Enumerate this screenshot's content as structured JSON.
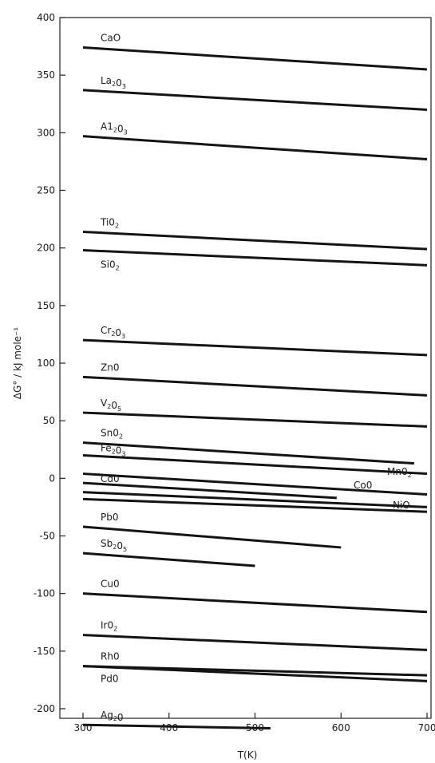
{
  "chart_data": {
    "type": "line",
    "title": "",
    "xlabel": "T(K)",
    "ylabel": "ΔG° / kJ mole⁻¹",
    "xlim": [
      275,
      700
    ],
    "ylim": [
      -225,
      400
    ],
    "xticks": [
      300,
      400,
      500,
      600,
      700
    ],
    "yticks": [
      400,
      350,
      300,
      250,
      200,
      150,
      100,
      50,
      0,
      -50,
      -100,
      -150,
      -200
    ],
    "grid": false,
    "line_color": "#141414",
    "series": [
      {
        "name": "CaO",
        "label_parts": [
          [
            "CaO",
            false
          ]
        ],
        "x": [
          300,
          700
        ],
        "y": [
          374,
          355
        ]
      },
      {
        "name": "La2O3",
        "label_parts": [
          [
            "La",
            false
          ],
          [
            "2",
            true
          ],
          [
            "0",
            false
          ],
          [
            "3",
            true
          ]
        ],
        "x": [
          300,
          700
        ],
        "y": [
          337,
          320
        ]
      },
      {
        "name": "Al2O3",
        "label_parts": [
          [
            "A1",
            false
          ],
          [
            "2",
            true
          ],
          [
            "0",
            false
          ],
          [
            "3",
            true
          ]
        ],
        "x": [
          300,
          700
        ],
        "y": [
          297,
          277
        ]
      },
      {
        "name": "TiO2",
        "label_parts": [
          [
            "Ti0",
            false
          ],
          [
            "2",
            true
          ]
        ],
        "x": [
          300,
          700
        ],
        "y": [
          214,
          199
        ]
      },
      {
        "name": "SiO2",
        "label_parts": [
          [
            "Si0",
            false
          ],
          [
            "2",
            true
          ]
        ],
        "x": [
          300,
          700
        ],
        "y": [
          198,
          185
        ]
      },
      {
        "name": "Cr2O3",
        "label_parts": [
          [
            "Cr",
            false
          ],
          [
            "2",
            true
          ],
          [
            "0",
            false
          ],
          [
            "3",
            true
          ]
        ],
        "x": [
          300,
          700
        ],
        "y": [
          120,
          107
        ]
      },
      {
        "name": "ZnO",
        "label_parts": [
          [
            "Zn0",
            false
          ]
        ],
        "x": [
          300,
          700
        ],
        "y": [
          88,
          72
        ]
      },
      {
        "name": "V2O5",
        "label_parts": [
          [
            "V",
            false
          ],
          [
            "2",
            true
          ],
          [
            "0",
            false
          ],
          [
            "5",
            true
          ]
        ],
        "x": [
          300,
          700
        ],
        "y": [
          57,
          45
        ]
      },
      {
        "name": "SnO2",
        "label_parts": [
          [
            "Sn0",
            false
          ],
          [
            "2",
            true
          ]
        ],
        "x": [
          300,
          685
        ],
        "y": [
          31,
          13
        ]
      },
      {
        "name": "Fe2O3",
        "label_parts": [
          [
            "Fe",
            false
          ],
          [
            "2",
            true
          ],
          [
            "0",
            false
          ],
          [
            "3",
            true
          ]
        ],
        "x": [
          300,
          700
        ],
        "y": [
          20,
          4
        ]
      },
      {
        "name": "MnO2",
        "label_parts": [
          [
            "Mn0",
            false
          ],
          [
            "2",
            true
          ]
        ],
        "x": [
          300,
          700
        ],
        "y": [
          4,
          -14
        ]
      },
      {
        "name": "CdO",
        "label_parts": [
          [
            "Cd0",
            false
          ]
        ],
        "x": [
          300,
          595
        ],
        "y": [
          -4,
          -17
        ]
      },
      {
        "name": "CoO",
        "label_parts": [
          [
            "Co0",
            false
          ]
        ],
        "x": [
          300,
          700
        ],
        "y": [
          -12,
          -25
        ]
      },
      {
        "name": "NiO",
        "label_parts": [
          [
            "NiO",
            false
          ]
        ],
        "x": [
          300,
          700
        ],
        "y": [
          -18,
          -29
        ]
      },
      {
        "name": "PbO",
        "label_parts": [
          [
            "Pb0",
            false
          ]
        ],
        "x": [
          300,
          600
        ],
        "y": [
          -42,
          -60
        ]
      },
      {
        "name": "Sb2O5",
        "label_parts": [
          [
            "Sb",
            false
          ],
          [
            "2",
            true
          ],
          [
            "0",
            false
          ],
          [
            "5",
            true
          ]
        ],
        "x": [
          300,
          500
        ],
        "y": [
          -65,
          -76
        ]
      },
      {
        "name": "CuO",
        "label_parts": [
          [
            "Cu0",
            false
          ]
        ],
        "x": [
          300,
          700
        ],
        "y": [
          -100,
          -116
        ]
      },
      {
        "name": "IrO2",
        "label_parts": [
          [
            "Ir0",
            false
          ],
          [
            "2",
            true
          ]
        ],
        "x": [
          300,
          700
        ],
        "y": [
          -136,
          -149
        ]
      },
      {
        "name": "RhO",
        "label_parts": [
          [
            "Rh0",
            false
          ]
        ],
        "x": [
          300,
          700
        ],
        "y": [
          -163,
          -171
        ]
      },
      {
        "name": "PdO",
        "label_parts": [
          [
            "Pd0",
            false
          ]
        ],
        "x": [
          300,
          700
        ],
        "y": [
          -163,
          -176
        ]
      },
      {
        "name": "Ag2O",
        "label_parts": [
          [
            "Ag",
            false
          ],
          [
            "2",
            true
          ],
          [
            "0",
            false
          ]
        ],
        "x": [
          300,
          518
        ],
        "y": [
          -214,
          -217
        ]
      }
    ]
  }
}
